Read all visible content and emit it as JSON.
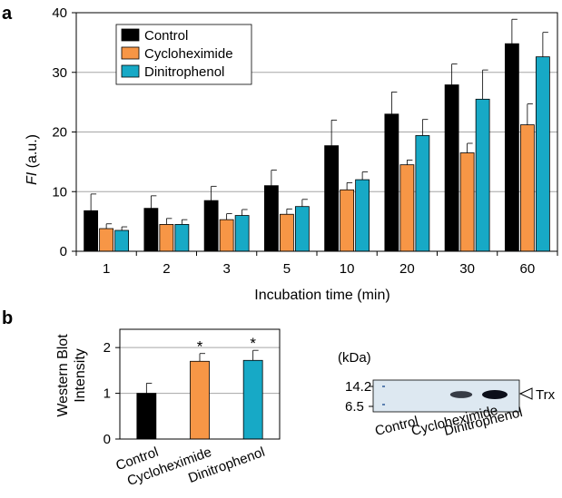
{
  "panels": {
    "a": "a",
    "b": "b"
  },
  "colors": {
    "control": "#000000",
    "cycloheximide": "#f79646",
    "dinitrophenol": "#17a9c6",
    "grid": "#a6a6a6",
    "blot_bg": "#dde8f1",
    "band": "#0c0f1a"
  },
  "chart_data": [
    {
      "type": "bar",
      "panel": "a",
      "categories": [
        "1",
        "2",
        "3",
        "5",
        "10",
        "20",
        "30",
        "60"
      ],
      "series": [
        {
          "name": "Control",
          "values": [
            6.8,
            7.2,
            8.5,
            11.0,
            17.7,
            23.0,
            27.9,
            34.8
          ],
          "errors": [
            2.8,
            2.1,
            2.4,
            2.6,
            4.3,
            3.7,
            3.5,
            4.1
          ]
        },
        {
          "name": "Cycloheximide",
          "values": [
            3.8,
            4.5,
            5.3,
            6.2,
            10.3,
            14.5,
            16.5,
            21.2
          ],
          "errors": [
            0.8,
            1.0,
            1.0,
            0.9,
            1.2,
            0.8,
            1.6,
            3.5
          ]
        },
        {
          "name": "Dinitrophenol",
          "values": [
            3.5,
            4.5,
            6.0,
            7.5,
            12.0,
            19.4,
            25.5,
            32.6
          ],
          "errors": [
            0.6,
            0.8,
            1.0,
            1.2,
            1.3,
            2.7,
            4.9,
            4.1
          ]
        }
      ],
      "xlabel": "Incubation time (min)",
      "ylabel_italic": "FI",
      "ylabel_rest": " (a.u.)",
      "ylim": [
        0,
        40
      ],
      "yticks": [
        "0",
        "10",
        "20",
        "30",
        "40"
      ],
      "grid": true,
      "legend": "top-left"
    },
    {
      "type": "bar",
      "panel": "b",
      "categories": [
        "Control",
        "Cycloheximide",
        "Dinitrophenol"
      ],
      "values": [
        1.0,
        1.7,
        1.72
      ],
      "errors": [
        0.22,
        0.17,
        0.22
      ],
      "significance": [
        "",
        "*",
        "*"
      ],
      "ylabel_line1": "Western Blot",
      "ylabel_line2": "Intensity",
      "ylim": [
        0,
        2.4
      ],
      "yticks": [
        "0",
        "1",
        "2"
      ],
      "grid": true
    }
  ],
  "blot": {
    "unit_label": "(kDa)",
    "markers": [
      "14.2",
      "6.5"
    ],
    "protein_label": "Trx",
    "lanes": [
      "Control",
      "Cycloheximide",
      "Dinitrophenol"
    ],
    "band_intensity": [
      0.0,
      0.55,
      1.0
    ]
  }
}
